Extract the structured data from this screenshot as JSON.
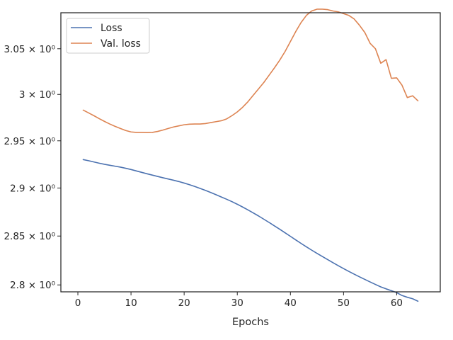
{
  "chart_data": {
    "type": "line",
    "xlabel": "Epochs",
    "ylabel": "",
    "title": "",
    "y_scale": "log",
    "xlim": [
      -3.2,
      68.2
    ],
    "ylim": [
      2.793,
      3.09
    ],
    "x_ticks": [
      {
        "value": 0,
        "label": "0"
      },
      {
        "value": 10,
        "label": "10"
      },
      {
        "value": 20,
        "label": "20"
      },
      {
        "value": 30,
        "label": "30"
      },
      {
        "value": 40,
        "label": "40"
      },
      {
        "value": 50,
        "label": "50"
      },
      {
        "value": 60,
        "label": "60"
      }
    ],
    "y_ticks": [
      {
        "value": 2.8,
        "label": "2.8 × 10⁰"
      },
      {
        "value": 2.85,
        "label": "2.85 × 10⁰"
      },
      {
        "value": 2.9,
        "label": "2.9 × 10⁰"
      },
      {
        "value": 2.95,
        "label": "2.95 × 10⁰"
      },
      {
        "value": 3.0,
        "label": "3 × 10⁰"
      },
      {
        "value": 3.05,
        "label": "3.05 × 10⁰"
      }
    ],
    "grid": false,
    "legend_position": "upper-left",
    "x": [
      1,
      2,
      3,
      4,
      5,
      6,
      7,
      8,
      9,
      10,
      11,
      12,
      13,
      14,
      15,
      16,
      17,
      18,
      19,
      20,
      21,
      22,
      23,
      24,
      25,
      26,
      27,
      28,
      29,
      30,
      31,
      32,
      33,
      34,
      35,
      36,
      37,
      38,
      39,
      40,
      41,
      42,
      43,
      44,
      45,
      46,
      47,
      48,
      49,
      50,
      51,
      52,
      53,
      54,
      55,
      56,
      57,
      58,
      59,
      60,
      61,
      62,
      63,
      64
    ],
    "series": [
      {
        "name": "Loss",
        "color": "#4c72b0",
        "values": [
          2.93,
          2.9288,
          2.9275,
          2.9262,
          2.925,
          2.924,
          2.923,
          2.922,
          2.9208,
          2.9195,
          2.918,
          2.9165,
          2.915,
          2.9136,
          2.9122,
          2.9108,
          2.9095,
          2.9082,
          2.9068,
          2.9052,
          2.9035,
          2.9016,
          2.8996,
          2.8975,
          2.8953,
          2.893,
          2.8906,
          2.8882,
          2.8857,
          2.883,
          2.8801,
          2.8771,
          2.874,
          2.8708,
          2.8674,
          2.864,
          2.8605,
          2.857,
          2.8533,
          2.8497,
          2.846,
          2.8424,
          2.8389,
          2.8355,
          2.8322,
          2.829,
          2.8258,
          2.8227,
          2.8196,
          2.8166,
          2.8137,
          2.8109,
          2.8082,
          2.8056,
          2.803,
          2.8005,
          2.798,
          2.796,
          2.7942,
          2.7922,
          2.7893,
          2.7875,
          2.786,
          2.7835
        ]
      },
      {
        "name": "Val. loss",
        "color": "#dd8452",
        "values": [
          2.983,
          2.98,
          2.977,
          2.9738,
          2.9708,
          2.968,
          2.9655,
          2.9632,
          2.961,
          2.9595,
          2.959,
          2.959,
          2.9588,
          2.959,
          2.96,
          2.9615,
          2.9632,
          2.9648,
          2.966,
          2.9672,
          2.9678,
          2.968,
          2.968,
          2.9685,
          2.9695,
          2.9705,
          2.9715,
          2.9735,
          2.977,
          2.981,
          2.986,
          2.992,
          2.999,
          3.006,
          3.013,
          3.021,
          3.029,
          3.0375,
          3.047,
          3.058,
          3.069,
          3.079,
          3.087,
          3.092,
          3.094,
          3.094,
          3.0935,
          3.092,
          3.091,
          3.089,
          3.087,
          3.083,
          3.076,
          3.068,
          3.056,
          3.05,
          3.034,
          3.038,
          3.0175,
          3.018,
          3.01,
          2.9965,
          2.9985,
          2.993
        ]
      }
    ]
  }
}
